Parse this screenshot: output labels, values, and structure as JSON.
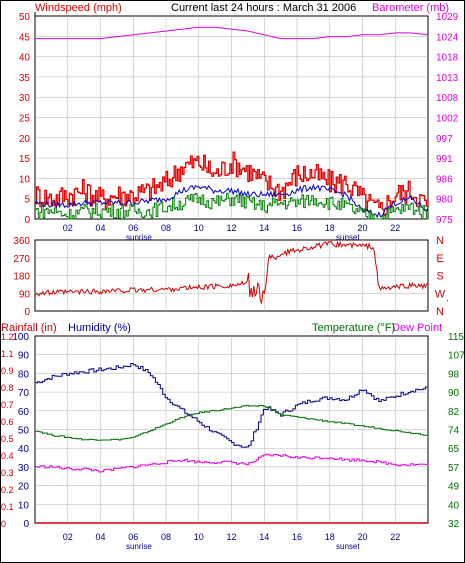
{
  "header": {
    "left_label": "Windspeed (mph)",
    "title": "Current last 24 hours : March 31 2006",
    "right_label": "Barometer (mb)"
  },
  "colors": {
    "wind_max": "#e00000",
    "wind_avg": "#0000c0",
    "wind_min": "#008000",
    "barometer": "#e000e0",
    "direction": "#d00000",
    "humidity": "#000090",
    "temperature": "#007000",
    "dewpoint": "#e000e0",
    "rainfall": "#d00000",
    "grid": "#b0b0b0",
    "frame": "#000000"
  },
  "x_axis": {
    "ticks": [
      "02",
      "04",
      "06",
      "08",
      "10",
      "12",
      "14",
      "16",
      "18",
      "20",
      "22"
    ],
    "sunrise_label": "sunrise",
    "sunset_label": "sunset"
  },
  "panel3_labels": {
    "rainfall": "Rainfall (in)",
    "humidity": "Humidity (%)",
    "temperature": "Temperature (°F)",
    "dewpoint": "Dew Point"
  },
  "chart_data": [
    {
      "type": "line",
      "panel": "wind_barometer",
      "x_hours": [
        0,
        1,
        2,
        3,
        4,
        5,
        6,
        7,
        8,
        9,
        10,
        11,
        12,
        13,
        14,
        15,
        16,
        17,
        18,
        19,
        20,
        21,
        22,
        23,
        24
      ],
      "left_axis": {
        "label": "Windspeed (mph)",
        "ylim": [
          0,
          50
        ],
        "ticks": [
          "0",
          "5",
          "10",
          "15",
          "20",
          "25",
          "30",
          "35",
          "40",
          "45",
          "50"
        ]
      },
      "right_axis": {
        "label": "Barometer (mb)",
        "ylim": [
          975,
          1029
        ],
        "ticks": [
          "975",
          "980",
          "986",
          "991",
          "997",
          "1002",
          "1008",
          "1013",
          "1018",
          "1024",
          "1029"
        ]
      },
      "series": [
        {
          "axis": "right",
          "color_key": "barometer",
          "values": [
            1023,
            1023,
            1023,
            1023,
            1023,
            1023.5,
            1024,
            1024.5,
            1025,
            1025.5,
            1026,
            1026,
            1025.5,
            1025,
            1024,
            1023,
            1023,
            1023,
            1023.5,
            1023.5,
            1024,
            1024,
            1024.5,
            1024.5,
            1024
          ]
        },
        {
          "axis": "left",
          "color_key": "wind_max",
          "values": [
            6,
            5,
            6,
            7,
            5,
            6,
            6,
            7,
            9,
            13,
            14,
            11,
            14,
            12,
            9,
            7,
            11,
            11,
            9,
            9,
            5,
            2,
            6,
            7,
            3
          ]
        },
        {
          "axis": "left",
          "color_key": "wind_avg",
          "values": [
            4,
            3.5,
            3.5,
            4,
            4,
            4,
            4,
            4.5,
            5,
            7,
            8,
            7,
            7,
            6,
            6,
            6,
            7,
            8,
            7,
            6,
            2,
            1,
            4,
            5,
            2
          ]
        },
        {
          "axis": "left",
          "color_key": "wind_min",
          "values": [
            2,
            2,
            1,
            2,
            2,
            2,
            2,
            2,
            3,
            4,
            5,
            4,
            5,
            4,
            3,
            4,
            4,
            5,
            4,
            3,
            1,
            0,
            2,
            3,
            1
          ]
        }
      ]
    },
    {
      "type": "line",
      "panel": "wind_direction",
      "left_axis": {
        "ylim": [
          0,
          360
        ],
        "ticks": [
          "0",
          "90",
          "180",
          "270",
          "360"
        ]
      },
      "right_axis": {
        "ticks": [
          "N",
          "W",
          "S",
          "E",
          "N"
        ]
      },
      "series": [
        {
          "color_key": "direction",
          "x_hours": [
            0,
            2,
            4,
            6,
            8,
            10,
            12,
            13,
            13.9,
            14.2,
            15,
            16,
            17,
            18,
            19,
            20,
            20.7,
            21,
            22,
            23,
            24
          ],
          "values": [
            90,
            95,
            100,
            105,
            110,
            120,
            130,
            140,
            60,
            240,
            290,
            310,
            325,
            340,
            335,
            330,
            325,
            110,
            120,
            130,
            125
          ]
        }
      ]
    },
    {
      "type": "line",
      "panel": "humidity_temperature",
      "left_axis": {
        "ylim": [
          0,
          100
        ],
        "ticks": [
          "0",
          "10",
          "20",
          "30",
          "40",
          "50",
          "60",
          "70",
          "80",
          "90",
          "100"
        ]
      },
      "rain_axis": {
        "ylim": [
          0,
          1.2
        ],
        "ticks": [
          "0",
          "0.1",
          "0.2",
          "0.3",
          "0.4",
          "0.5",
          "0.6",
          "0.7",
          "0.8",
          "0.9",
          "1.1",
          "1.2"
        ]
      },
      "right_axis": {
        "ylim": [
          32,
          115
        ],
        "ticks": [
          "32",
          "40",
          "49",
          "57",
          "65",
          "74",
          "82",
          "90",
          "98",
          "107",
          "115"
        ]
      },
      "series": [
        {
          "name": "Humidity (%)",
          "axis": "left",
          "color_key": "humidity",
          "x_hours": [
            0,
            1,
            2,
            3,
            4,
            5,
            6,
            7,
            8,
            9,
            10,
            11,
            12,
            13,
            14,
            15,
            16,
            17,
            18,
            19,
            20,
            21,
            22,
            23,
            24
          ],
          "values": [
            75,
            78,
            80,
            81,
            82,
            83,
            85,
            80,
            67,
            60,
            54,
            48,
            43,
            40,
            62,
            58,
            63,
            66,
            67,
            66,
            72,
            65,
            68,
            71,
            72
          ]
        },
        {
          "name": "Temperature (°F)",
          "axis": "right",
          "color_key": "temperature",
          "x_hours": [
            0,
            1,
            2,
            3,
            4,
            5,
            6,
            7,
            8,
            9,
            10,
            11,
            12,
            13,
            14,
            15,
            16,
            17,
            18,
            19,
            20,
            21,
            22,
            23,
            24
          ],
          "values": [
            73,
            71,
            70,
            69,
            69,
            69,
            70,
            73,
            76,
            79,
            81,
            82,
            83,
            84,
            84,
            80,
            79,
            78,
            77,
            76,
            75,
            74,
            73,
            72,
            71
          ]
        },
        {
          "name": "Dew Point",
          "axis": "right",
          "color_key": "dewpoint",
          "x_hours": [
            0,
            1,
            2,
            3,
            4,
            5,
            6,
            7,
            8,
            9,
            10,
            11,
            12,
            13,
            14,
            15,
            16,
            17,
            18,
            19,
            20,
            21,
            22,
            23,
            24
          ],
          "values": [
            57,
            57,
            56,
            56,
            55,
            56,
            57,
            58,
            59,
            60,
            59,
            59,
            59,
            58,
            62,
            62,
            61,
            61,
            61,
            60,
            60,
            59,
            58,
            58,
            58
          ]
        },
        {
          "name": "Rainfall (in)",
          "axis": "rain",
          "color_key": "rainfall",
          "x_hours": [
            0,
            24
          ],
          "values": [
            0,
            0
          ]
        }
      ]
    }
  ]
}
